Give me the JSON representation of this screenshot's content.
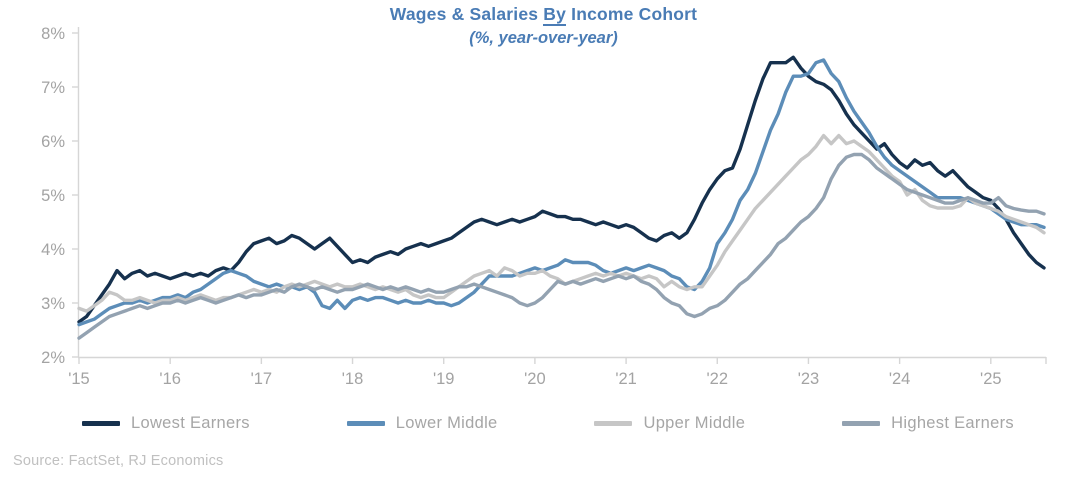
{
  "title": {
    "prefix": "Wages & Salaries ",
    "underlined_word": "By",
    "suffix": " Income Cohort",
    "subtitle": "(%, year-over-year)",
    "color": "#4a7cb5"
  },
  "source": "Source: FactSet, RJ Economics",
  "axis_style": {
    "axis_color": "#d6d6d6",
    "label_color": "#a3a3a3",
    "label_font_size": 16.5
  },
  "chart_data": {
    "type": "line",
    "title": "Wages & Salaries By Income Cohort",
    "subtitle": "(%, year-over-year)",
    "x_unit": "month",
    "x_start": "2015-01",
    "x_end": "2025-08",
    "n_points": 128,
    "x_tick_labels": [
      "'15",
      "'16",
      "'17",
      "'18",
      "'19",
      "'20",
      "'21",
      "'22",
      "'23",
      "'24",
      "'25"
    ],
    "x_tick_indices": [
      0,
      12,
      24,
      36,
      48,
      60,
      72,
      84,
      96,
      108,
      120
    ],
    "y_tick_values": [
      2,
      3,
      4,
      5,
      6,
      7,
      8
    ],
    "y_tick_labels": [
      "2%",
      "3%",
      "4%",
      "5%",
      "6%",
      "7%",
      "8%"
    ],
    "ylim": [
      2,
      8
    ],
    "grid": false,
    "legend_position": "bottom",
    "series": [
      {
        "name": "Lowest Earners",
        "color": "#16314e",
        "values": [
          2.65,
          2.75,
          2.95,
          3.15,
          3.35,
          3.6,
          3.45,
          3.55,
          3.6,
          3.5,
          3.55,
          3.5,
          3.45,
          3.5,
          3.55,
          3.5,
          3.55,
          3.5,
          3.6,
          3.65,
          3.6,
          3.75,
          3.95,
          4.1,
          4.15,
          4.2,
          4.1,
          4.15,
          4.25,
          4.2,
          4.1,
          4.0,
          4.1,
          4.2,
          4.05,
          3.9,
          3.75,
          3.8,
          3.75,
          3.85,
          3.9,
          3.95,
          3.9,
          4.0,
          4.05,
          4.1,
          4.05,
          4.1,
          4.15,
          4.2,
          4.3,
          4.4,
          4.5,
          4.55,
          4.5,
          4.45,
          4.5,
          4.55,
          4.5,
          4.55,
          4.6,
          4.7,
          4.65,
          4.6,
          4.6,
          4.55,
          4.55,
          4.5,
          4.45,
          4.5,
          4.45,
          4.4,
          4.45,
          4.4,
          4.3,
          4.2,
          4.15,
          4.25,
          4.3,
          4.2,
          4.3,
          4.55,
          4.85,
          5.1,
          5.3,
          5.45,
          5.5,
          5.85,
          6.3,
          6.75,
          7.15,
          7.45,
          7.45,
          7.45,
          7.55,
          7.35,
          7.2,
          7.1,
          7.05,
          6.95,
          6.75,
          6.5,
          6.3,
          6.15,
          6.0,
          5.85,
          5.95,
          5.75,
          5.6,
          5.5,
          5.65,
          5.55,
          5.6,
          5.45,
          5.35,
          5.45,
          5.3,
          5.15,
          5.05,
          4.95,
          4.9,
          4.75,
          4.55,
          4.3,
          4.1,
          3.9,
          3.75,
          3.65
        ]
      },
      {
        "name": "Lower Middle",
        "color": "#5c8db8",
        "values": [
          2.6,
          2.65,
          2.7,
          2.8,
          2.9,
          2.95,
          3.0,
          3.0,
          3.05,
          3.0,
          3.05,
          3.1,
          3.1,
          3.15,
          3.1,
          3.2,
          3.25,
          3.35,
          3.45,
          3.55,
          3.6,
          3.55,
          3.5,
          3.4,
          3.35,
          3.3,
          3.35,
          3.3,
          3.3,
          3.25,
          3.3,
          3.2,
          2.95,
          2.9,
          3.05,
          2.9,
          3.05,
          3.1,
          3.05,
          3.1,
          3.1,
          3.05,
          3.0,
          3.05,
          3.0,
          3.0,
          3.05,
          3.0,
          3.0,
          2.95,
          3.0,
          3.1,
          3.2,
          3.35,
          3.5,
          3.5,
          3.5,
          3.5,
          3.55,
          3.6,
          3.65,
          3.6,
          3.65,
          3.7,
          3.8,
          3.75,
          3.75,
          3.75,
          3.7,
          3.6,
          3.55,
          3.6,
          3.65,
          3.6,
          3.65,
          3.7,
          3.65,
          3.6,
          3.5,
          3.45,
          3.3,
          3.25,
          3.4,
          3.65,
          4.1,
          4.3,
          4.55,
          4.9,
          5.1,
          5.4,
          5.8,
          6.2,
          6.5,
          6.9,
          7.2,
          7.2,
          7.25,
          7.45,
          7.5,
          7.25,
          7.1,
          6.8,
          6.55,
          6.35,
          6.15,
          5.9,
          5.7,
          5.55,
          5.45,
          5.35,
          5.25,
          5.15,
          5.05,
          4.95,
          4.95,
          4.95,
          4.95,
          4.9,
          4.85,
          4.8,
          4.75,
          4.65,
          4.55,
          4.5,
          4.45,
          4.45,
          4.45,
          4.4
        ]
      },
      {
        "name": "Upper Middle",
        "color": "#c6c6c6",
        "values": [
          2.9,
          2.85,
          2.95,
          3.05,
          3.2,
          3.15,
          3.05,
          3.05,
          3.1,
          3.05,
          3.0,
          3.05,
          3.05,
          3.1,
          3.05,
          3.1,
          3.15,
          3.1,
          3.05,
          3.1,
          3.1,
          3.15,
          3.2,
          3.25,
          3.2,
          3.25,
          3.2,
          3.3,
          3.35,
          3.3,
          3.35,
          3.4,
          3.35,
          3.3,
          3.35,
          3.3,
          3.3,
          3.35,
          3.3,
          3.25,
          3.3,
          3.25,
          3.2,
          3.25,
          3.15,
          3.1,
          3.15,
          3.1,
          3.1,
          3.2,
          3.3,
          3.4,
          3.5,
          3.55,
          3.6,
          3.5,
          3.65,
          3.6,
          3.5,
          3.55,
          3.55,
          3.6,
          3.5,
          3.45,
          3.35,
          3.4,
          3.45,
          3.5,
          3.55,
          3.5,
          3.55,
          3.5,
          3.55,
          3.5,
          3.45,
          3.5,
          3.45,
          3.3,
          3.4,
          3.3,
          3.25,
          3.3,
          3.3,
          3.5,
          3.7,
          3.95,
          4.15,
          4.35,
          4.55,
          4.75,
          4.9,
          5.05,
          5.2,
          5.35,
          5.5,
          5.65,
          5.75,
          5.9,
          6.1,
          5.95,
          6.1,
          5.95,
          6.0,
          5.9,
          5.8,
          5.65,
          5.5,
          5.35,
          5.25,
          5.0,
          5.1,
          4.9,
          4.8,
          4.76,
          4.76,
          4.76,
          4.8,
          4.95,
          4.85,
          4.8,
          4.75,
          4.7,
          4.6,
          4.55,
          4.5,
          4.45,
          4.4,
          4.3
        ]
      },
      {
        "name": "Highest Earners",
        "color": "#93a2b1",
        "values": [
          2.35,
          2.45,
          2.55,
          2.65,
          2.75,
          2.8,
          2.85,
          2.9,
          2.95,
          2.9,
          2.95,
          3.0,
          3.0,
          3.05,
          3.0,
          3.05,
          3.1,
          3.05,
          3.0,
          3.05,
          3.1,
          3.15,
          3.1,
          3.15,
          3.15,
          3.2,
          3.25,
          3.2,
          3.3,
          3.35,
          3.3,
          3.25,
          3.3,
          3.25,
          3.2,
          3.25,
          3.25,
          3.3,
          3.35,
          3.3,
          3.25,
          3.3,
          3.25,
          3.3,
          3.25,
          3.2,
          3.25,
          3.2,
          3.2,
          3.25,
          3.3,
          3.3,
          3.35,
          3.3,
          3.25,
          3.2,
          3.15,
          3.1,
          3.0,
          2.95,
          3.0,
          3.1,
          3.25,
          3.4,
          3.35,
          3.4,
          3.35,
          3.4,
          3.45,
          3.4,
          3.45,
          3.5,
          3.45,
          3.5,
          3.4,
          3.35,
          3.25,
          3.1,
          3.0,
          2.95,
          2.8,
          2.75,
          2.8,
          2.9,
          2.95,
          3.05,
          3.2,
          3.35,
          3.45,
          3.6,
          3.75,
          3.9,
          4.1,
          4.2,
          4.35,
          4.5,
          4.6,
          4.75,
          4.95,
          5.3,
          5.55,
          5.7,
          5.75,
          5.75,
          5.65,
          5.5,
          5.4,
          5.3,
          5.2,
          5.1,
          5.05,
          5.0,
          4.95,
          4.9,
          4.85,
          4.85,
          4.9,
          4.95,
          4.9,
          4.85,
          4.85,
          4.95,
          4.8,
          4.75,
          4.72,
          4.7,
          4.7,
          4.65
        ]
      }
    ]
  }
}
